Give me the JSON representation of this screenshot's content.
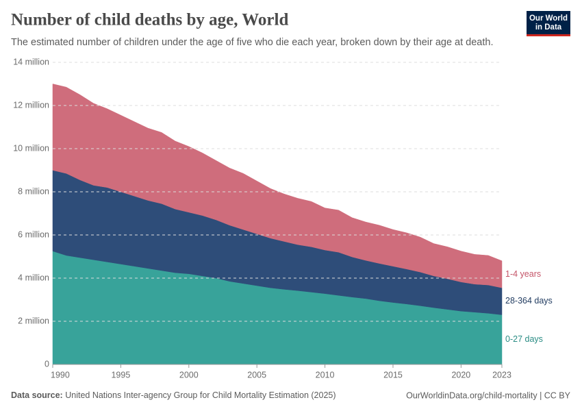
{
  "chart_data": {
    "type": "stacked_area",
    "title": "Number of child deaths by age, World",
    "subtitle": "The estimated number of children under the age of five who die each year, broken down by their age at death.",
    "x": [
      1990,
      1991,
      1992,
      1993,
      1994,
      1995,
      1996,
      1997,
      1998,
      1999,
      2000,
      2001,
      2002,
      2003,
      2004,
      2005,
      2006,
      2007,
      2008,
      2009,
      2010,
      2011,
      2012,
      2013,
      2014,
      2015,
      2016,
      2017,
      2018,
      2019,
      2020,
      2021,
      2022,
      2023
    ],
    "series": [
      {
        "name": "0-27 days",
        "color": "#38a39a",
        "label_color": "#2a8c84",
        "values": [
          5250000,
          5050000,
          4950000,
          4850000,
          4750000,
          4650000,
          4550000,
          4450000,
          4350000,
          4250000,
          4200000,
          4100000,
          4000000,
          3850000,
          3750000,
          3650000,
          3550000,
          3480000,
          3420000,
          3350000,
          3280000,
          3200000,
          3120000,
          3050000,
          2950000,
          2870000,
          2800000,
          2720000,
          2630000,
          2550000,
          2470000,
          2420000,
          2370000,
          2300000
        ]
      },
      {
        "name": "28-364 days",
        "color": "#2e4d79",
        "label_color": "#1f3a5f",
        "values": [
          3750000,
          3800000,
          3600000,
          3450000,
          3450000,
          3350000,
          3250000,
          3150000,
          3100000,
          2950000,
          2850000,
          2800000,
          2700000,
          2600000,
          2500000,
          2400000,
          2300000,
          2220000,
          2130000,
          2100000,
          2020000,
          2000000,
          1860000,
          1770000,
          1730000,
          1680000,
          1620000,
          1560000,
          1470000,
          1420000,
          1350000,
          1300000,
          1310000,
          1250000
        ]
      },
      {
        "name": "1-4 years",
        "color": "#cf6d7c",
        "label_color": "#c45468",
        "values": [
          4000000,
          4000000,
          3950000,
          3800000,
          3650000,
          3550000,
          3450000,
          3350000,
          3300000,
          3150000,
          3050000,
          2900000,
          2750000,
          2650000,
          2600000,
          2450000,
          2300000,
          2200000,
          2150000,
          2100000,
          1950000,
          1950000,
          1820000,
          1780000,
          1770000,
          1700000,
          1680000,
          1620000,
          1500000,
          1480000,
          1430000,
          1380000,
          1370000,
          1250000
        ]
      }
    ],
    "xlim": [
      1990,
      2023
    ],
    "xticks": [
      1990,
      1995,
      2000,
      2005,
      2010,
      2015,
      2020,
      2023
    ],
    "ylim": [
      0,
      14000000
    ],
    "yticks": [
      0,
      {
        "value": 2000000,
        "label": "2 million"
      },
      {
        "value": 4000000,
        "label": "4 million"
      },
      {
        "value": 6000000,
        "label": "6 million"
      },
      {
        "value": 8000000,
        "label": "8 million"
      },
      {
        "value": 10000000,
        "label": "10 million"
      },
      {
        "value": 12000000,
        "label": "12 million"
      },
      {
        "value": 14000000,
        "label": "14 million"
      }
    ],
    "grid": true
  },
  "logo": [
    "Our World",
    "in Data"
  ],
  "footer": {
    "source_label": "Data source:",
    "source": "United Nations Inter-agency Group for Child Mortality Estimation (2025)",
    "url": "OurWorldinData.org/child-mortality | CC BY"
  }
}
